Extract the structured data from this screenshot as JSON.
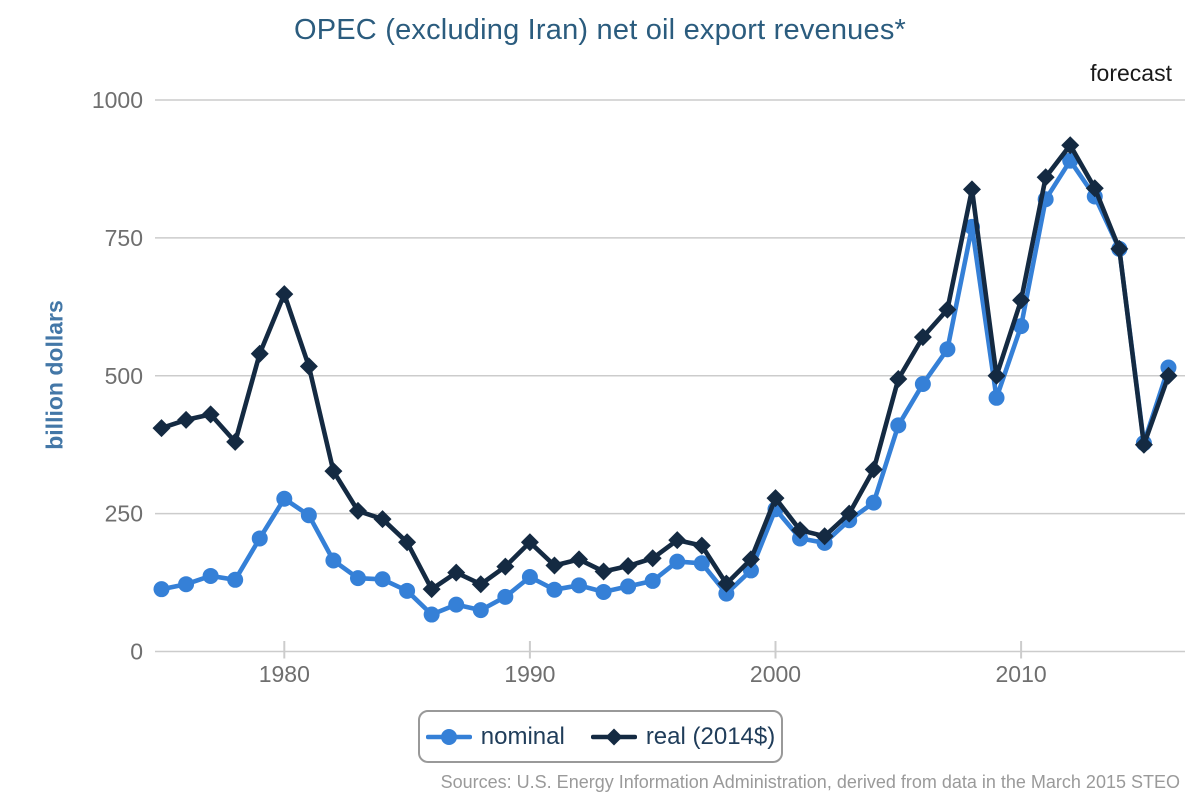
{
  "title": "OPEC (excluding Iran) net oil export revenues*",
  "forecast_label": "forecast",
  "source": "Sources: U.S. Energy Information Administration, derived from data in the March 2015 STEO",
  "y_axis": {
    "label": "billion dollars"
  },
  "legend": {
    "items": [
      {
        "label": "nominal"
      },
      {
        "label": "real (2014$)"
      }
    ]
  },
  "chart_data": {
    "type": "line",
    "title": "OPEC (excluding Iran) net oil export revenues*",
    "ylabel": "billion dollars",
    "xlabel": "",
    "ylim": [
      0,
      1000
    ],
    "y_ticks": [
      0,
      250,
      500,
      750,
      1000
    ],
    "x_ticks": [
      1980,
      1990,
      2000,
      2010
    ],
    "grid": "horizontal",
    "legend_position": "bottom",
    "annotations": [
      "forecast"
    ],
    "forecast_years": [
      2015,
      2016
    ],
    "x": [
      1975,
      1976,
      1977,
      1978,
      1979,
      1980,
      1981,
      1982,
      1983,
      1984,
      1985,
      1986,
      1987,
      1988,
      1989,
      1990,
      1991,
      1992,
      1993,
      1994,
      1995,
      1996,
      1997,
      1998,
      1999,
      2000,
      2001,
      2002,
      2003,
      2004,
      2005,
      2006,
      2007,
      2008,
      2009,
      2010,
      2011,
      2012,
      2013,
      2014,
      2015,
      2016
    ],
    "series": [
      {
        "name": "nominal",
        "marker": "circle",
        "color": "#3580d7",
        "values": [
          113,
          122,
          137,
          130,
          205,
          277,
          247,
          165,
          133,
          131,
          110,
          67,
          85,
          75,
          99,
          135,
          112,
          120,
          108,
          118,
          128,
          163,
          160,
          105,
          147,
          258,
          205,
          197,
          238,
          270,
          410,
          485,
          548,
          770,
          460,
          590,
          820,
          890,
          825,
          730,
          378,
          515
        ]
      },
      {
        "name": "real (2014$)",
        "marker": "diamond",
        "color": "#142a42",
        "values": [
          405,
          420,
          430,
          380,
          540,
          648,
          517,
          327,
          255,
          240,
          198,
          113,
          143,
          122,
          154,
          198,
          156,
          167,
          145,
          155,
          169,
          202,
          192,
          123,
          167,
          278,
          220,
          209,
          250,
          330,
          494,
          570,
          620,
          838,
          500,
          637,
          860,
          918,
          840,
          730,
          375,
          500
        ]
      }
    ]
  },
  "colors": {
    "title": "#2b5c7e",
    "gridline": "#cccccc",
    "tick_label": "#6f6f6f",
    "y_axis_title": "#4377a7",
    "legend_text": "#203d5a",
    "legend_border": "#999999",
    "source_text": "#9a9a9a",
    "forecast_text": "#1a1a1a"
  }
}
